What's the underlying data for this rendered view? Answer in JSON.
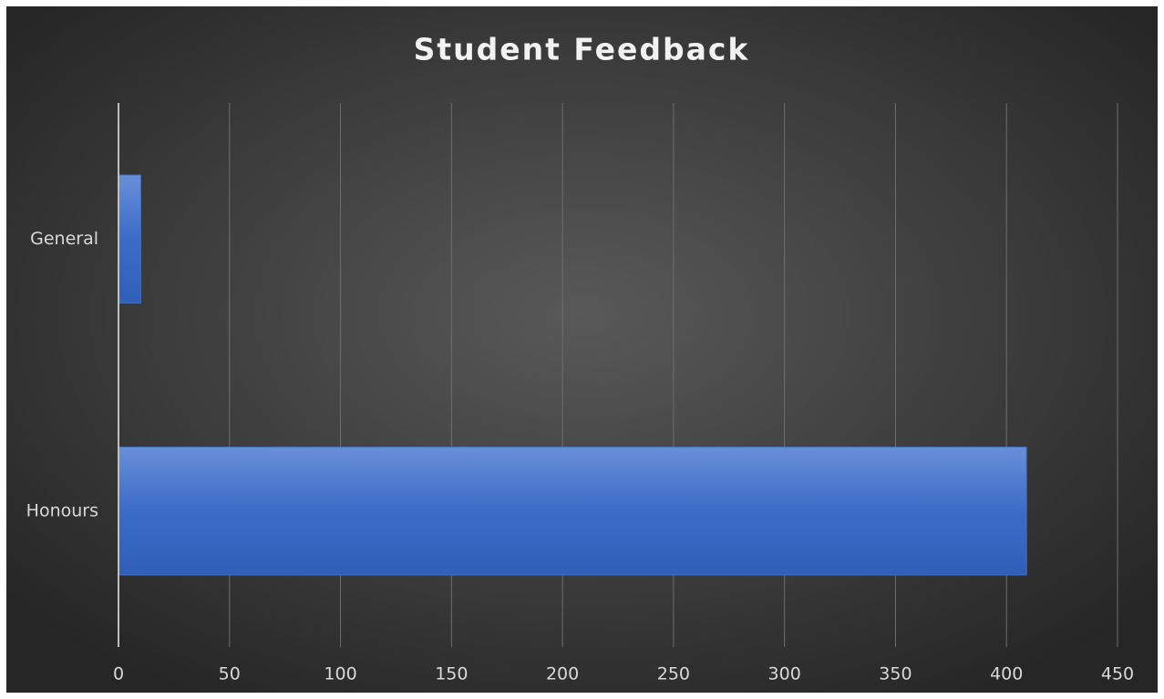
{
  "chart_data": {
    "type": "bar",
    "orientation": "horizontal",
    "title": "Student Feedback",
    "categories": [
      "General",
      "Honours"
    ],
    "values": [
      10,
      409
    ],
    "color": "#4472c4",
    "xlim": [
      0,
      450
    ],
    "xticks": [
      0,
      50,
      100,
      150,
      200,
      250,
      300,
      350,
      400,
      450
    ],
    "grid": true
  }
}
